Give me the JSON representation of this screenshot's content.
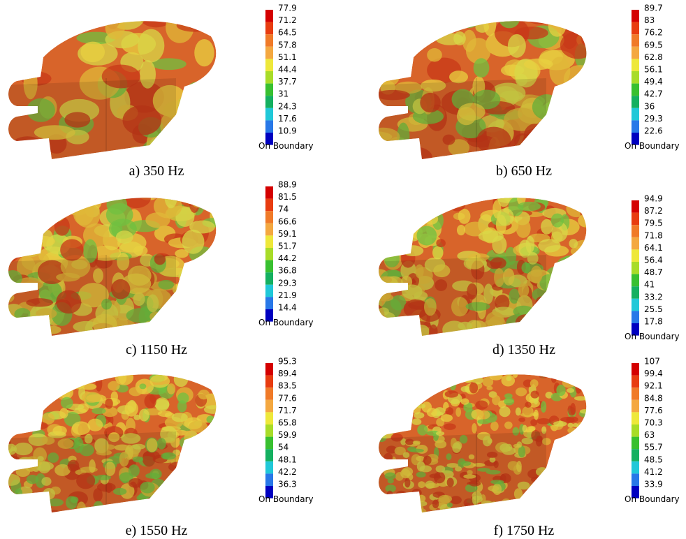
{
  "panels": [
    {
      "caption": "a) 350 Hz",
      "scale": [
        "77.9",
        "71.2",
        "64.5",
        "57.8",
        "51.1",
        "44.4",
        "37.7",
        "31",
        "24.3",
        "17.6",
        "10.9"
      ],
      "boundary_label": "On Boundary"
    },
    {
      "caption": "b) 650 Hz",
      "scale": [
        "89.7",
        "83",
        "76.2",
        "69.5",
        "62.8",
        "56.1",
        "49.4",
        "42.7",
        "36",
        "29.3",
        "22.6"
      ],
      "boundary_label": "On Boundary"
    },
    {
      "caption": "c) 1150 Hz",
      "scale": [
        "88.9",
        "81.5",
        "74",
        "66.6",
        "59.1",
        "51.7",
        "44.2",
        "36.8",
        "29.3",
        "21.9",
        "14.4"
      ],
      "boundary_label": "On Boundary"
    },
    {
      "caption": "d) 1350 Hz",
      "scale": [
        "94.9",
        "87.2",
        "79.5",
        "71.8",
        "64.1",
        "56.4",
        "48.7",
        "41",
        "33.2",
        "25.5",
        "17.8"
      ],
      "boundary_label": "On Boundary"
    },
    {
      "caption": "e) 1550 Hz",
      "scale": [
        "95.3",
        "89.4",
        "83.5",
        "77.6",
        "71.7",
        "65.8",
        "59.9",
        "54",
        "48.1",
        "42.2",
        "36.3"
      ],
      "boundary_label": "On Boundary"
    },
    {
      "caption": "f) 1750 Hz",
      "scale": [
        "107",
        "99.4",
        "92.1",
        "84.8",
        "77.6",
        "70.3",
        "63",
        "55.7",
        "48.5",
        "41.2",
        "33.9"
      ],
      "boundary_label": "On Boundary"
    }
  ]
}
